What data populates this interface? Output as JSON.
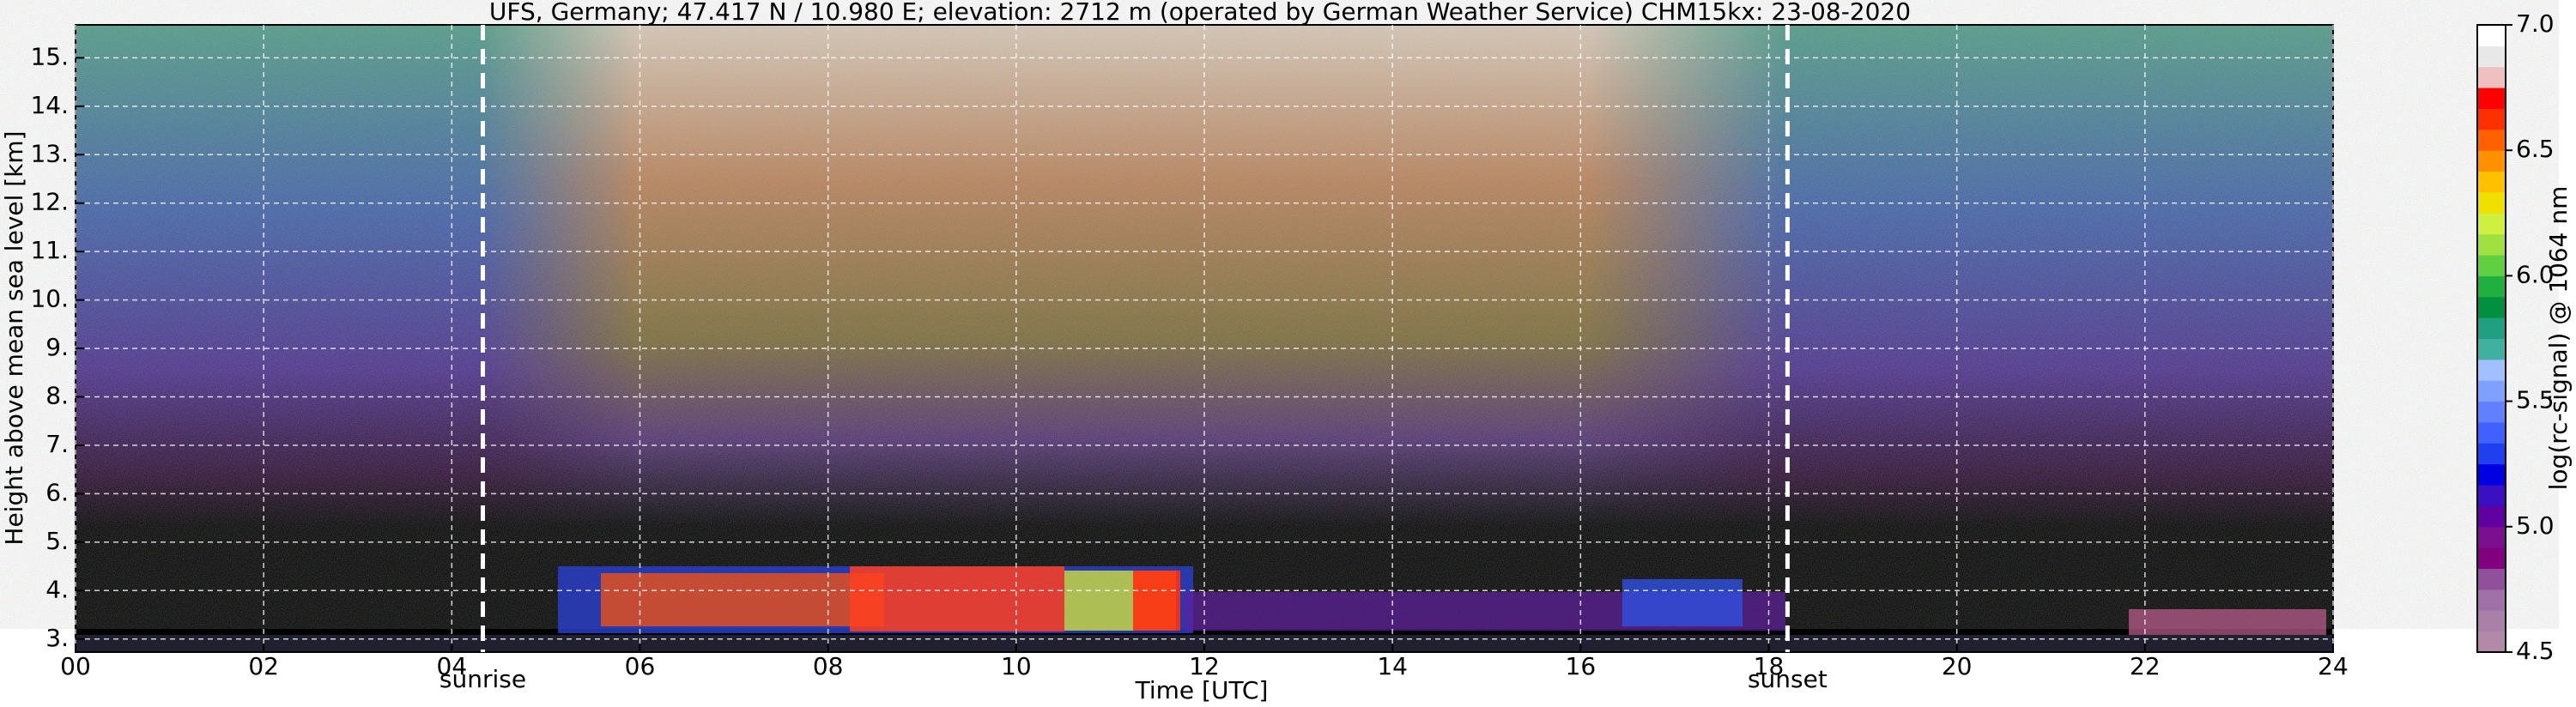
{
  "chart_data": {
    "type": "heatmap",
    "title": "UFS, Germany; 47.417 N / 10.980 E; elevation: 2712 m  (operated by German Weather Service)    CHM15kx: 23-08-2020",
    "x_label": "Time [UTC]",
    "y_label": "Height above mean sea level [km]",
    "xlim": [
      0,
      24
    ],
    "xticks": [
      {
        "value": 0,
        "label": "00"
      },
      {
        "value": 2,
        "label": "02"
      },
      {
        "value": 4,
        "label": "04"
      },
      {
        "value": 6,
        "label": "06"
      },
      {
        "value": 8,
        "label": "08"
      },
      {
        "value": 10,
        "label": "10"
      },
      {
        "value": 12,
        "label": "12"
      },
      {
        "value": 14,
        "label": "14"
      },
      {
        "value": 16,
        "label": "16"
      },
      {
        "value": 18,
        "label": "18"
      },
      {
        "value": 20,
        "label": "20"
      },
      {
        "value": 22,
        "label": "22"
      },
      {
        "value": 24,
        "label": "24"
      }
    ],
    "ylim": [
      2.73,
      15.68
    ],
    "yticks": [
      {
        "value": 3,
        "label": "3."
      },
      {
        "value": 4,
        "label": "4."
      },
      {
        "value": 5,
        "label": "5."
      },
      {
        "value": 6,
        "label": "6."
      },
      {
        "value": 7,
        "label": "7."
      },
      {
        "value": 8,
        "label": "8."
      },
      {
        "value": 9,
        "label": "9."
      },
      {
        "value": 10,
        "label": "10."
      },
      {
        "value": 11,
        "label": "11."
      },
      {
        "value": 12,
        "label": "12."
      },
      {
        "value": 13,
        "label": "13."
      },
      {
        "value": 14,
        "label": "14."
      },
      {
        "value": 15,
        "label": "15."
      }
    ],
    "grid": true,
    "annotations": [
      {
        "text": "sunrise",
        "x": 4.33
      },
      {
        "text": "sunset",
        "x": 18.2
      }
    ],
    "colorbar": {
      "label": "log(rc-signal) @ 1064 nm",
      "lim": [
        4.5,
        7.0
      ],
      "ticks": [
        4.5,
        {
          "value": 5,
          "label": "5.0"
        },
        5.5,
        {
          "value": 6,
          "label": "6.0"
        },
        6.5,
        {
          "value": 7,
          "label": "7.0"
        }
      ],
      "colors": [
        "#b08aa8",
        "#a880a8",
        "#a070a8",
        "#90509a",
        "#800080",
        "#7a1090",
        "#6000a0",
        "#3a10c0",
        "#0000e0",
        "#2040f0",
        "#4060ff",
        "#6080ff",
        "#80a0ff",
        "#a0c0ff",
        "#40b0a0",
        "#20a080",
        "#009040",
        "#20b040",
        "#60d040",
        "#a0e040",
        "#d0f040",
        "#f0e000",
        "#ffc000",
        "#ff9000",
        "#ff6000",
        "#ff3000",
        "#ff0000",
        "#f0c0c0",
        "#e8e8e8",
        "#ffffff"
      ]
    }
  }
}
